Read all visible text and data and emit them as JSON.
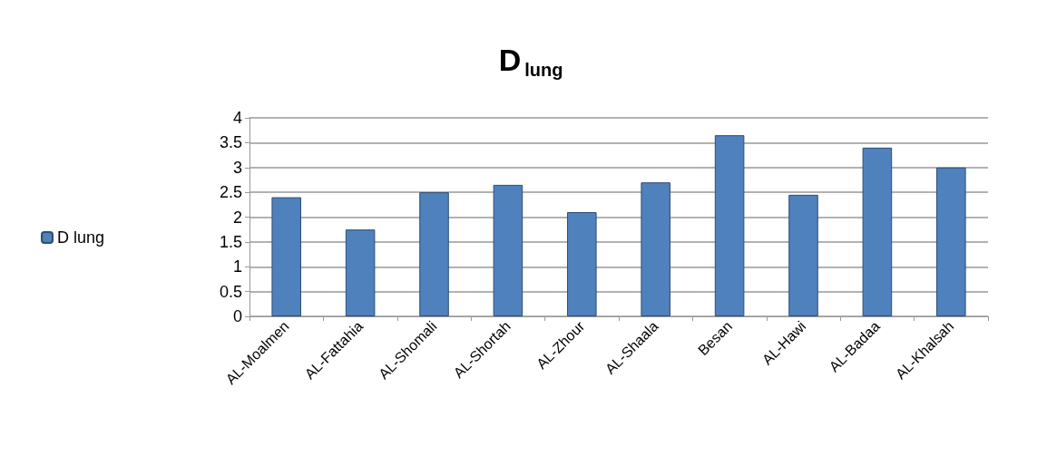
{
  "chart_data": {
    "type": "bar",
    "title": "D$_{lung}$",
    "categories": [
      "AL-Moalmen",
      "AL-Fattahia",
      "AL-Shomali",
      "AL-Shortah",
      "AL-Zhour",
      "AL-Shaala",
      "Besan",
      "AL-Hawi",
      "AL-Badaa",
      "AL-Khalsah"
    ],
    "series": [
      {
        "name": "D lung",
        "color": "#4f81bd",
        "values": [
          2.4,
          1.75,
          2.5,
          2.65,
          2.1,
          2.7,
          3.65,
          2.45,
          3.4,
          3.0
        ]
      }
    ],
    "ylim": [
      0,
      4
    ],
    "yticks": [
      0,
      0.5,
      1,
      1.5,
      2,
      2.5,
      3,
      3.5,
      4
    ],
    "grid": "y",
    "legend": "left"
  }
}
